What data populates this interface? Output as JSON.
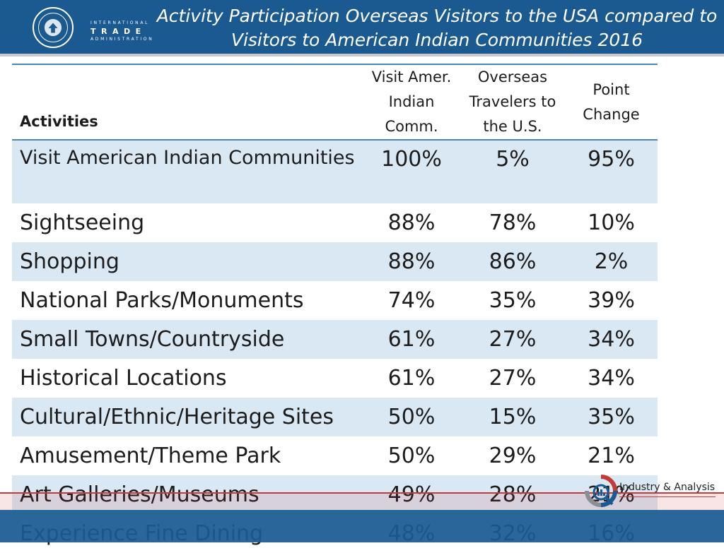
{
  "header": {
    "title_line1": "Activity Participation Overseas Visitors to the USA compared to",
    "title_line2": "Visitors to American Indian Communities 2016",
    "ita_line1": "INTERNATIONAL",
    "ita_line2": "TRADE",
    "ita_line3": "ADMINISTRATION",
    "seal_icon": "department-of-commerce-seal"
  },
  "table": {
    "headers": {
      "activities": "Activities",
      "col2": [
        "Visit Amer.",
        "Indian",
        "Comm."
      ],
      "col3": [
        "Overseas",
        "Travelers to",
        "the U.S."
      ],
      "col4": [
        "Point",
        "Change"
      ]
    },
    "rows": [
      {
        "activity": "Visit American Indian Communities",
        "aic": "100%",
        "overseas": "5%",
        "change": "95%"
      },
      {
        "activity": "Sightseeing",
        "aic": "88%",
        "overseas": "78%",
        "change": "10%"
      },
      {
        "activity": "Shopping",
        "aic": "88%",
        "overseas": "86%",
        "change": "2%"
      },
      {
        "activity": "National Parks/Monuments",
        "aic": "74%",
        "overseas": "35%",
        "change": "39%"
      },
      {
        "activity": "Small Towns/Countryside",
        "aic": "61%",
        "overseas": "27%",
        "change": "34%"
      },
      {
        "activity": "Historical Locations",
        "aic": "61%",
        "overseas": "27%",
        "change": "34%"
      },
      {
        "activity": "Cultural/Ethnic/Heritage Sites",
        "aic": "50%",
        "overseas": "15%",
        "change": "35%"
      },
      {
        "activity": "Amusement/Theme Park",
        "aic": "50%",
        "overseas": "29%",
        "change": "21%"
      },
      {
        "activity": "Art Galleries/Museums",
        "aic": "49%",
        "overseas": "28%",
        "change": "21%"
      },
      {
        "activity": "Experience Fine Dining",
        "aic": "48%",
        "overseas": "32%",
        "change": "16%"
      }
    ]
  },
  "footer": {
    "logo_text": "Industry & Analysis",
    "logo_icon": "industry-analysis-magnifier-icon"
  },
  "colors": {
    "header_blue": "#1a5a91",
    "row_shade": "#d9e8f3",
    "rule_blue": "#4a86b7",
    "accent_red": "#c33a3a"
  }
}
